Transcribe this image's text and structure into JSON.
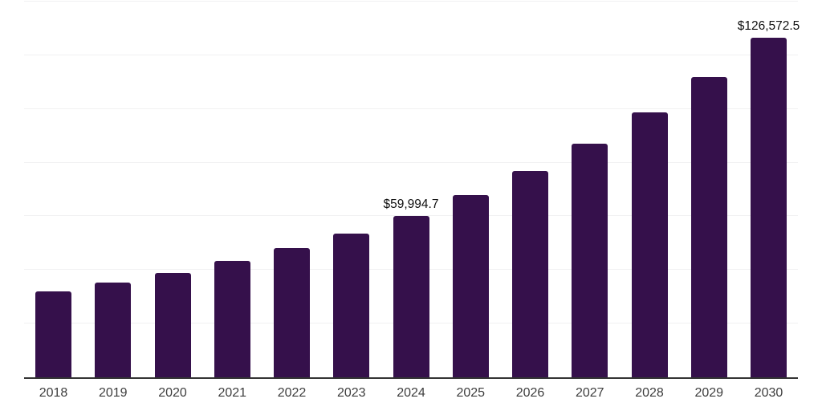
{
  "chart_data": {
    "type": "bar",
    "title": "",
    "xlabel": "",
    "ylabel": "",
    "categories": [
      "2018",
      "2019",
      "2020",
      "2021",
      "2022",
      "2023",
      "2024",
      "2025",
      "2026",
      "2027",
      "2028",
      "2029",
      "2030"
    ],
    "values": [
      32000,
      35300,
      38900,
      43400,
      48200,
      53500,
      59994.7,
      67900,
      76900,
      87100,
      98700,
      111800,
      126572.5
    ],
    "value_labels": {
      "2024": "$59,994.7",
      "2030": "$126,572.5"
    },
    "ylim": [
      0,
      140000
    ],
    "grid_step": 20000,
    "grid": "horizontal-only",
    "y_tick_labels_shown": false,
    "legend_position": "none",
    "colors": {
      "bar": "#35104b",
      "gridline": "#f1f1f2",
      "axis_line": "#333333",
      "tick_label": "#3d3d3d",
      "data_label": "#111111",
      "background": "#ffffff"
    }
  }
}
